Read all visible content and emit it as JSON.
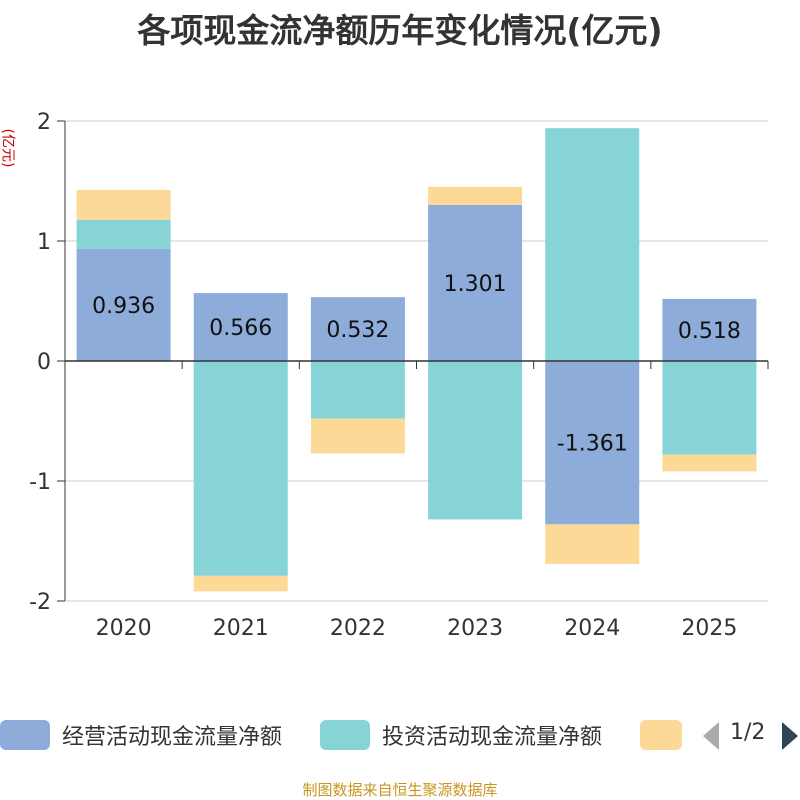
{
  "chart_data": {
    "type": "bar",
    "stacked": true,
    "title": "各项现金流净额历年变化情况(亿元)",
    "ylabel": "(亿元)",
    "xlabel": "",
    "categories": [
      "2020",
      "2021",
      "2022",
      "2023",
      "2024",
      "2025"
    ],
    "ylim": [
      -2,
      2
    ],
    "yticks": [
      -2,
      -1,
      0,
      1,
      2
    ],
    "series": [
      {
        "name": "经营活动现金流量净额",
        "color": "#8eacda",
        "values": [
          0.936,
          0.566,
          0.532,
          1.301,
          -1.361,
          0.518
        ],
        "labels": [
          "0.936",
          "0.566",
          "0.532",
          "1.301",
          "-1.361",
          "0.518"
        ]
      },
      {
        "name": "投资活动现金流量净额",
        "color": "#87d4d6",
        "values": [
          0.24,
          -1.79,
          -0.48,
          -1.32,
          1.94,
          -0.78
        ]
      },
      {
        "name": "",
        "color": "#fdd997",
        "values": [
          0.25,
          -0.13,
          -0.29,
          0.15,
          -0.33,
          -0.14
        ]
      }
    ],
    "legend_position": "bottom"
  },
  "legend": {
    "items": [
      {
        "label": "经营活动现金流量净额",
        "color": "#8eacda"
      },
      {
        "label": "投资活动现金流量净额",
        "color": "#87d4d6"
      },
      {
        "label": "",
        "color": "#fdd997"
      }
    ],
    "pager_text": "1/2"
  },
  "source": "制图数据来自恒生聚源数据库"
}
